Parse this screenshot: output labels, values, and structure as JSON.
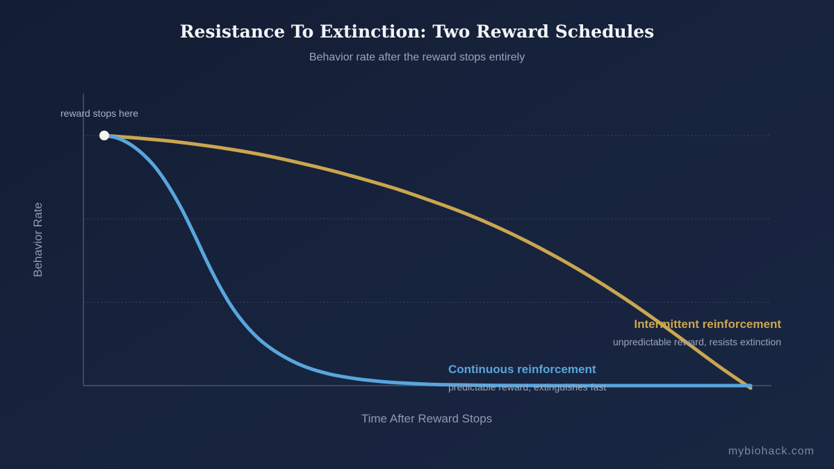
{
  "chart_data": {
    "type": "line",
    "title": "Resistance To Extinction: Two Reward Schedules",
    "subtitle": "Behavior rate after the reward stops entirely",
    "xlabel": "Time After Reward Stops",
    "ylabel": "Behavior Rate",
    "xlim": [
      0,
      1
    ],
    "ylim": [
      0,
      1
    ],
    "grid": {
      "y_lines": [
        0.333,
        0.667,
        1.0
      ],
      "style": "dotted"
    },
    "annotations": [
      {
        "text": "reward stops here",
        "x": 0,
        "y": 1
      }
    ],
    "series": [
      {
        "name": "Continuous reinforcement",
        "description": "predictable reward, extinguishes fast",
        "color": "#58a6dd",
        "points": [
          [
            0,
            1.0
          ],
          [
            0.02,
            0.99
          ],
          [
            0.04,
            0.965
          ],
          [
            0.06,
            0.925
          ],
          [
            0.08,
            0.87
          ],
          [
            0.1,
            0.795
          ],
          [
            0.12,
            0.705
          ],
          [
            0.14,
            0.6
          ],
          [
            0.16,
            0.49
          ],
          [
            0.18,
            0.39
          ],
          [
            0.2,
            0.305
          ],
          [
            0.22,
            0.238
          ],
          [
            0.24,
            0.185
          ],
          [
            0.26,
            0.145
          ],
          [
            0.28,
            0.113
          ],
          [
            0.3,
            0.087
          ],
          [
            0.32,
            0.067
          ],
          [
            0.34,
            0.052
          ],
          [
            0.36,
            0.04
          ],
          [
            0.4,
            0.024
          ],
          [
            0.44,
            0.014
          ],
          [
            0.48,
            0.008
          ],
          [
            0.52,
            0.004
          ],
          [
            0.6,
            0.001
          ],
          [
            0.7,
            0.0
          ],
          [
            0.8,
            0.0
          ],
          [
            0.9,
            0.0
          ],
          [
            1.0,
            0.0
          ]
        ]
      },
      {
        "name": "Intermittent reinforcement",
        "description": "unpredictable reward, resists extinction",
        "color": "#cba64f",
        "points": [
          [
            0,
            1.0
          ],
          [
            0.05,
            0.99
          ],
          [
            0.1,
            0.978
          ],
          [
            0.15,
            0.962
          ],
          [
            0.2,
            0.943
          ],
          [
            0.25,
            0.92
          ],
          [
            0.3,
            0.892
          ],
          [
            0.35,
            0.861
          ],
          [
            0.4,
            0.826
          ],
          [
            0.45,
            0.788
          ],
          [
            0.5,
            0.744
          ],
          [
            0.55,
            0.697
          ],
          [
            0.6,
            0.643
          ],
          [
            0.65,
            0.582
          ],
          [
            0.7,
            0.514
          ],
          [
            0.75,
            0.439
          ],
          [
            0.8,
            0.357
          ],
          [
            0.85,
            0.268
          ],
          [
            0.9,
            0.174
          ],
          [
            0.95,
            0.079
          ],
          [
            1.0,
            -0.01
          ]
        ]
      }
    ]
  },
  "watermark": "mybiohack.com",
  "colors": {
    "title": "#f2f4f7",
    "subtitle": "#98a5bb",
    "axis_label": "#8e9ab0",
    "axis": "#4a5670",
    "grid": "#3a4660",
    "annotation": "#aab3c4",
    "start_marker": "#f4f4f2",
    "series_desc": "#9aa5b7",
    "watermark": "#7d889c"
  }
}
